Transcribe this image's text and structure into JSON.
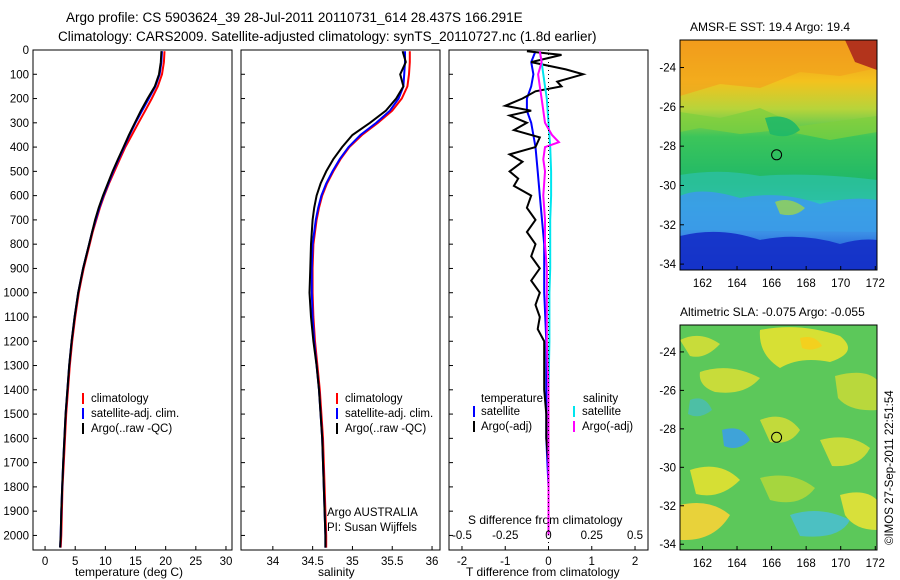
{
  "title_line1": "Argo profile: CS 5903624_39 28-Jul-2011 20110731_614 28.437S 166.291E",
  "title_line2": "Climatology: CARS2009. Satellite-adjusted climatology: synTS_20110727.nc (1.8d earlier)",
  "credit": "©IMOS 27-Sep-2011 22:51:54",
  "colors": {
    "climatology": "#ff0000",
    "satellite": "#0000ff",
    "argo": "#000000",
    "sat_salinity": "#00e5ee",
    "argo_salinity": "#ff00ff"
  },
  "chart_data": [
    {
      "type": "line",
      "name": "temperature",
      "xlabel": "temperature (deg C)",
      "ylabel": "",
      "xlim": [
        -2,
        31
      ],
      "ylim": [
        0,
        2060
      ],
      "y_reversed": true,
      "xticks": [
        "0",
        "5",
        "10",
        "15",
        "20",
        "25",
        "30"
      ],
      "yticks": [
        "0",
        "100",
        "200",
        "300",
        "400",
        "500",
        "600",
        "700",
        "800",
        "900",
        "1000",
        "1100",
        "1200",
        "1300",
        "1400",
        "1500",
        "1600",
        "1700",
        "1800",
        "1900",
        "2000"
      ],
      "legend": [
        "climatology",
        "satellite-adj. clim.",
        "Argo(..raw -QC)"
      ],
      "series": [
        {
          "name": "climatology",
          "color": "#ff0000",
          "y": [
            5,
            50,
            100,
            150,
            200,
            250,
            300,
            350,
            400,
            450,
            500,
            550,
            600,
            650,
            700,
            750,
            800,
            850,
            900,
            950,
            1000,
            1100,
            1200,
            1300,
            1400,
            1500,
            1600,
            1700,
            1800,
            1900,
            2000,
            2050
          ],
          "x": [
            19.8,
            19.7,
            19.4,
            18.7,
            17.7,
            16.6,
            15.5,
            14.4,
            13.3,
            12.4,
            11.5,
            10.6,
            9.8,
            9.1,
            8.5,
            7.9,
            7.4,
            6.9,
            6.4,
            6.0,
            5.6,
            5.0,
            4.5,
            4.1,
            3.8,
            3.5,
            3.3,
            3.1,
            2.9,
            2.8,
            2.7,
            2.6
          ]
        },
        {
          "name": "satellite-adj. clim.",
          "color": "#0000ff",
          "y": [
            5,
            50,
            100,
            150,
            200,
            250,
            300,
            350,
            400,
            450,
            500,
            550,
            600,
            650,
            700,
            750,
            800,
            850,
            900,
            950,
            1000,
            1100,
            1200,
            1300,
            1400,
            1500,
            1600,
            1700,
            1800,
            1900,
            2000,
            2050
          ],
          "x": [
            19.4,
            19.3,
            19.0,
            18.3,
            17.2,
            16.1,
            15.0,
            14.0,
            13.1,
            12.2,
            11.3,
            10.5,
            9.7,
            9.0,
            8.4,
            7.8,
            7.3,
            6.8,
            6.3,
            5.9,
            5.5,
            4.9,
            4.4,
            4.0,
            3.7,
            3.4,
            3.2,
            3.0,
            2.85,
            2.7,
            2.6,
            2.5
          ]
        },
        {
          "name": "Argo(..raw -QC)",
          "color": "#000000",
          "y": [
            5,
            50,
            100,
            150,
            200,
            250,
            300,
            350,
            400,
            450,
            500,
            550,
            600,
            650,
            700,
            750,
            800,
            850,
            900,
            950,
            1000,
            1100,
            1200,
            1300,
            1400,
            1500,
            1600,
            1700,
            1800,
            1900,
            2000,
            2050
          ],
          "x": [
            19.3,
            19.2,
            18.9,
            18.2,
            17.0,
            15.9,
            14.9,
            13.9,
            13.0,
            12.1,
            11.2,
            10.4,
            9.6,
            8.9,
            8.3,
            7.8,
            7.3,
            6.8,
            6.3,
            5.9,
            5.5,
            4.9,
            4.4,
            4.0,
            3.7,
            3.4,
            3.2,
            3.0,
            2.85,
            2.7,
            2.6,
            2.5
          ]
        }
      ]
    },
    {
      "type": "line",
      "name": "salinity",
      "xlabel": "salinity",
      "xlim": [
        33.6,
        36.1
      ],
      "ylim": [
        0,
        2060
      ],
      "y_reversed": true,
      "xticks": [
        "34",
        "34.5",
        "35",
        "35.5",
        "36"
      ],
      "legend": [
        "climatology",
        "satellite-adj. clim.",
        "Argo(..raw -QC)"
      ],
      "annotation": [
        "Argo AUSTRALIA",
        "PI: Susan Wijffels"
      ],
      "series": [
        {
          "name": "climatology",
          "color": "#ff0000",
          "y": [
            5,
            50,
            100,
            150,
            200,
            250,
            300,
            350,
            400,
            450,
            500,
            550,
            600,
            650,
            700,
            750,
            800,
            900,
            1000,
            1100,
            1200,
            1300,
            1400,
            1500,
            1600,
            1700,
            1800,
            1900,
            2000,
            2050
          ],
          "x": [
            35.72,
            35.72,
            35.71,
            35.69,
            35.62,
            35.5,
            35.32,
            35.12,
            34.96,
            34.85,
            34.76,
            34.68,
            34.62,
            34.58,
            34.55,
            34.53,
            34.51,
            34.5,
            34.5,
            34.51,
            34.53,
            34.56,
            34.59,
            34.61,
            34.63,
            34.64,
            34.65,
            34.66,
            34.67,
            34.67
          ]
        },
        {
          "name": "satellite-adj. clim.",
          "color": "#0000ff",
          "y": [
            5,
            50,
            100,
            150,
            200,
            250,
            300,
            350,
            400,
            450,
            500,
            550,
            600,
            650,
            700,
            750,
            800,
            900,
            1000,
            1100,
            1200,
            1300,
            1400,
            1500,
            1600,
            1700,
            1800,
            1900,
            2000,
            2050
          ],
          "x": [
            35.66,
            35.66,
            35.65,
            35.64,
            35.58,
            35.47,
            35.3,
            35.1,
            34.95,
            34.84,
            34.75,
            34.67,
            34.61,
            34.57,
            34.54,
            34.52,
            34.5,
            34.49,
            34.49,
            34.5,
            34.52,
            34.55,
            34.58,
            34.6,
            34.62,
            34.63,
            34.64,
            34.65,
            34.66,
            34.66
          ]
        },
        {
          "name": "Argo(..raw -QC)",
          "color": "#000000",
          "y": [
            5,
            50,
            100,
            150,
            200,
            250,
            300,
            350,
            400,
            450,
            500,
            550,
            600,
            650,
            700,
            750,
            800,
            900,
            1000,
            1100,
            1200,
            1300,
            1400,
            1500,
            1600,
            1700,
            1800,
            1900,
            2000,
            2050
          ],
          "x": [
            35.63,
            35.67,
            35.6,
            35.64,
            35.55,
            35.42,
            35.22,
            35.0,
            34.87,
            34.76,
            34.67,
            34.6,
            34.55,
            34.52,
            34.5,
            34.49,
            34.48,
            34.47,
            34.46,
            34.48,
            34.51,
            34.55,
            34.58,
            34.6,
            34.62,
            34.63,
            34.64,
            34.65,
            34.66,
            34.66
          ]
        }
      ]
    },
    {
      "type": "line",
      "name": "difference",
      "xlabel": "T difference from climatology",
      "xlabel2": "S difference from climatology",
      "xlim": [
        -2.3,
        2.3
      ],
      "ylim": [
        0,
        2060
      ],
      "y_reversed": true,
      "xticks": [
        "-2",
        "-1",
        "0",
        "1",
        "2"
      ],
      "xticks2": [
        "-0.5",
        "-0.25",
        "0",
        "0.25",
        "0.5"
      ],
      "legend_groups": [
        {
          "title": "temperature",
          "entries": [
            "satellite",
            "Argo(-adj)"
          ]
        },
        {
          "title": "salinity",
          "entries": [
            "satellite",
            "Argo(-adj)"
          ]
        }
      ],
      "series": [
        {
          "name": "temperature satellite",
          "color": "#0000ff",
          "y": [
            5,
            50,
            100,
            150,
            200,
            250,
            300,
            400,
            500,
            600,
            700,
            800,
            900,
            1000,
            1200,
            1400,
            1600,
            1800,
            2000
          ],
          "x": [
            -0.3,
            -0.4,
            -0.35,
            -0.4,
            -0.5,
            -0.5,
            -0.4,
            -0.3,
            -0.25,
            -0.2,
            -0.15,
            -0.1,
            -0.1,
            -0.1,
            -0.05,
            -0.05,
            -0.05,
            0,
            0
          ]
        },
        {
          "name": "temperature Argo(-adj)",
          "color": "#000000",
          "y": [
            5,
            20,
            50,
            80,
            100,
            130,
            150,
            170,
            200,
            230,
            250,
            270,
            300,
            330,
            360,
            400,
            430,
            460,
            500,
            530,
            560,
            600,
            650,
            700,
            750,
            800,
            850,
            900,
            950,
            1000,
            1050,
            1100,
            1150,
            1200,
            1300,
            1400,
            1500,
            1600,
            1700,
            1800,
            1900,
            2000
          ],
          "x": [
            -0.5,
            0.3,
            -0.4,
            0.4,
            0.8,
            0.2,
            0.3,
            -0.3,
            -0.6,
            -1.0,
            -0.4,
            -0.9,
            -0.5,
            -0.8,
            -0.2,
            -0.3,
            -0.9,
            -0.6,
            -0.9,
            -0.7,
            -0.8,
            -0.4,
            -0.5,
            -0.3,
            -0.5,
            -0.3,
            -0.4,
            -0.2,
            -0.4,
            -0.2,
            -0.3,
            -0.2,
            -0.25,
            -0.1,
            -0.1,
            -0.1,
            -0.05,
            -0.05,
            0,
            0,
            0,
            0
          ]
        },
        {
          "name": "salinity satellite",
          "color": "#00e5ee",
          "y": [
            5,
            50,
            100,
            150,
            200,
            300,
            400,
            500,
            600,
            700,
            800,
            900,
            1000,
            1200,
            1400,
            1600,
            1800,
            2000
          ],
          "x": [
            -0.05,
            -0.04,
            -0.03,
            -0.02,
            -0.01,
            0,
            0.01,
            0.015,
            0.015,
            0.01,
            0.01,
            0.01,
            0.005,
            0.005,
            0,
            0,
            0,
            0
          ]
        },
        {
          "name": "salinity Argo(-adj)",
          "color": "#ff00ff",
          "y": [
            5,
            50,
            100,
            150,
            200,
            300,
            350,
            380,
            400,
            450,
            500,
            600,
            700,
            800,
            900,
            1000,
            1200,
            1400,
            1600,
            1800,
            2000
          ],
          "x": [
            -0.05,
            -0.04,
            -0.06,
            -0.05,
            -0.04,
            -0.02,
            0.02,
            0.06,
            -0.02,
            -0.03,
            -0.02,
            -0.03,
            -0.02,
            -0.02,
            -0.01,
            -0.01,
            -0.01,
            0,
            0,
            0,
            0
          ]
        }
      ]
    },
    {
      "type": "heatmap",
      "name": "sst-map",
      "title": "AMSR-E SST: 19.4 Argo: 19.4",
      "xlim": [
        160.7,
        172.1
      ],
      "ylim": [
        -34.3,
        -22.6
      ],
      "xticks": [
        "162",
        "164",
        "166",
        "168",
        "170",
        "172"
      ],
      "yticks": [
        "-24",
        "-26",
        "-28",
        "-30",
        "-32",
        "-34"
      ],
      "marker": {
        "lon": 166.29,
        "lat": -28.44
      }
    },
    {
      "type": "heatmap",
      "name": "sla-map",
      "title": "Altimetric SLA: -0.075 Argo: -0.055",
      "xlim": [
        160.7,
        172.1
      ],
      "ylim": [
        -34.3,
        -22.6
      ],
      "xticks": [
        "162",
        "164",
        "166",
        "168",
        "170",
        "172"
      ],
      "yticks": [
        "-24",
        "-26",
        "-28",
        "-30",
        "-32",
        "-34"
      ],
      "marker": {
        "lon": 166.29,
        "lat": -28.44
      }
    }
  ]
}
